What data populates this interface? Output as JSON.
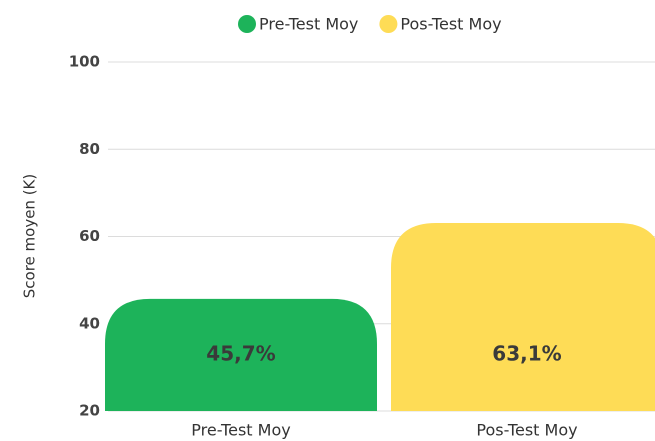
{
  "chart_data": {
    "type": "bar",
    "categories": [
      "Pre-Test Moy",
      "Pos-Test Moy"
    ],
    "series": [
      {
        "name": "Pre-Test Moy",
        "color": "#1db35a",
        "values": [
          45.7,
          null
        ],
        "value_labels": [
          "45,7%",
          null
        ]
      },
      {
        "name": "Pos-Test Moy",
        "color": "#fedc56",
        "values": [
          null,
          63.1
        ],
        "value_labels": [
          null,
          "63,1%"
        ]
      }
    ],
    "y_label": "Score moyen (K)",
    "ylim": [
      20,
      100
    ],
    "yticks": [
      20,
      40,
      60,
      80,
      100
    ],
    "grid": true,
    "legend": "top"
  }
}
